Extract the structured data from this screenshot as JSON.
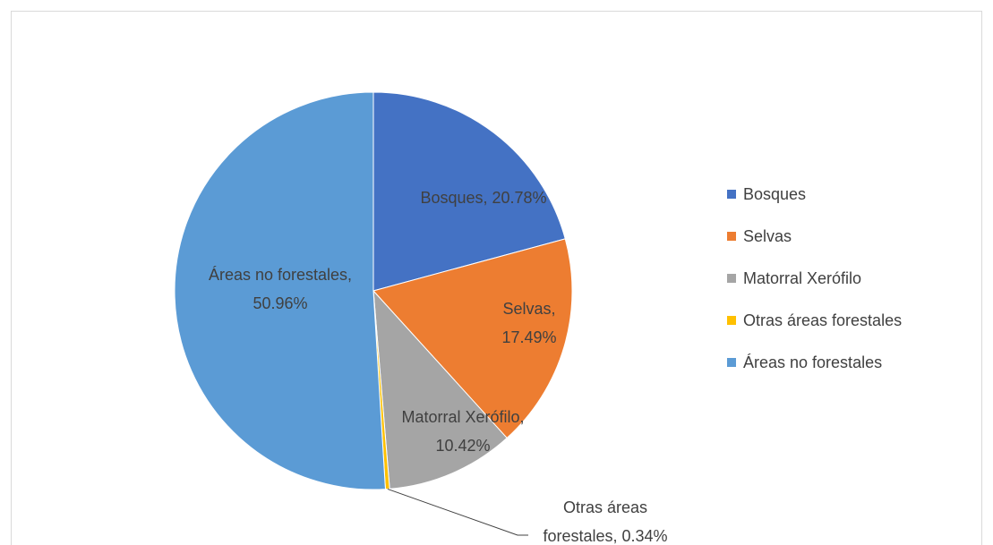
{
  "chart_data": {
    "type": "pie",
    "categories": [
      "Bosques",
      "Selvas",
      "Matorral Xerófilo",
      "Otras áreas forestales",
      "Áreas no forestales"
    ],
    "values": [
      20.78,
      17.49,
      10.42,
      0.34,
      50.96
    ],
    "value_labels": [
      "Bosques, 20.78%",
      "Selvas, 17.49%",
      "Matorral Xerófilo, 10.42%",
      "Otras áreas forestales, 0.34%",
      "Áreas no forestales, 50.96%"
    ],
    "colors": [
      "#4472c4",
      "#ed7d31",
      "#a5a5a5",
      "#ffc000",
      "#5b9bd5"
    ],
    "legend": "right"
  }
}
